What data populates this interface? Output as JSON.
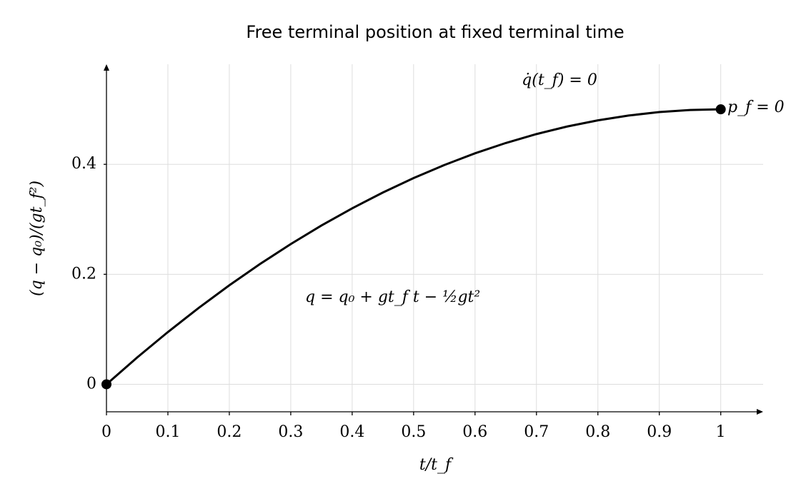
{
  "chart_data": {
    "type": "line",
    "title": "Free terminal position at fixed terminal time",
    "x_label": "t/t_f",
    "y_label": "(q − q₀)/(gt_f²)",
    "x": [
      0,
      0.05,
      0.1,
      0.15,
      0.2,
      0.25,
      0.3,
      0.35,
      0.4,
      0.45,
      0.5,
      0.55,
      0.6,
      0.65,
      0.7,
      0.75,
      0.8,
      0.85,
      0.9,
      0.95,
      1
    ],
    "values": [
      0,
      0.04875,
      0.095,
      0.13875,
      0.18,
      0.21875,
      0.255,
      0.28875,
      0.32,
      0.34875,
      0.375,
      0.39875,
      0.42,
      0.43875,
      0.455,
      0.46875,
      0.48,
      0.48875,
      0.495,
      0.49875,
      0.5
    ],
    "color": "#000000",
    "points": {
      "x": [
        0,
        1
      ],
      "values": [
        0,
        0.5
      ]
    },
    "annotations": [
      "q̇(t_f) = 0",
      "p_f = 0",
      "q = q₀ + gt_f t − ½gt²"
    ],
    "xlim": [
      0,
      1.069
    ],
    "ylim": [
      -0.05,
      0.582
    ],
    "xticks": [
      0,
      0.1,
      0.2,
      0.3,
      0.4,
      0.5,
      0.6,
      0.7,
      0.8,
      0.9,
      1
    ],
    "yticks": [
      0,
      0.2,
      0.4
    ],
    "grid": true
  }
}
